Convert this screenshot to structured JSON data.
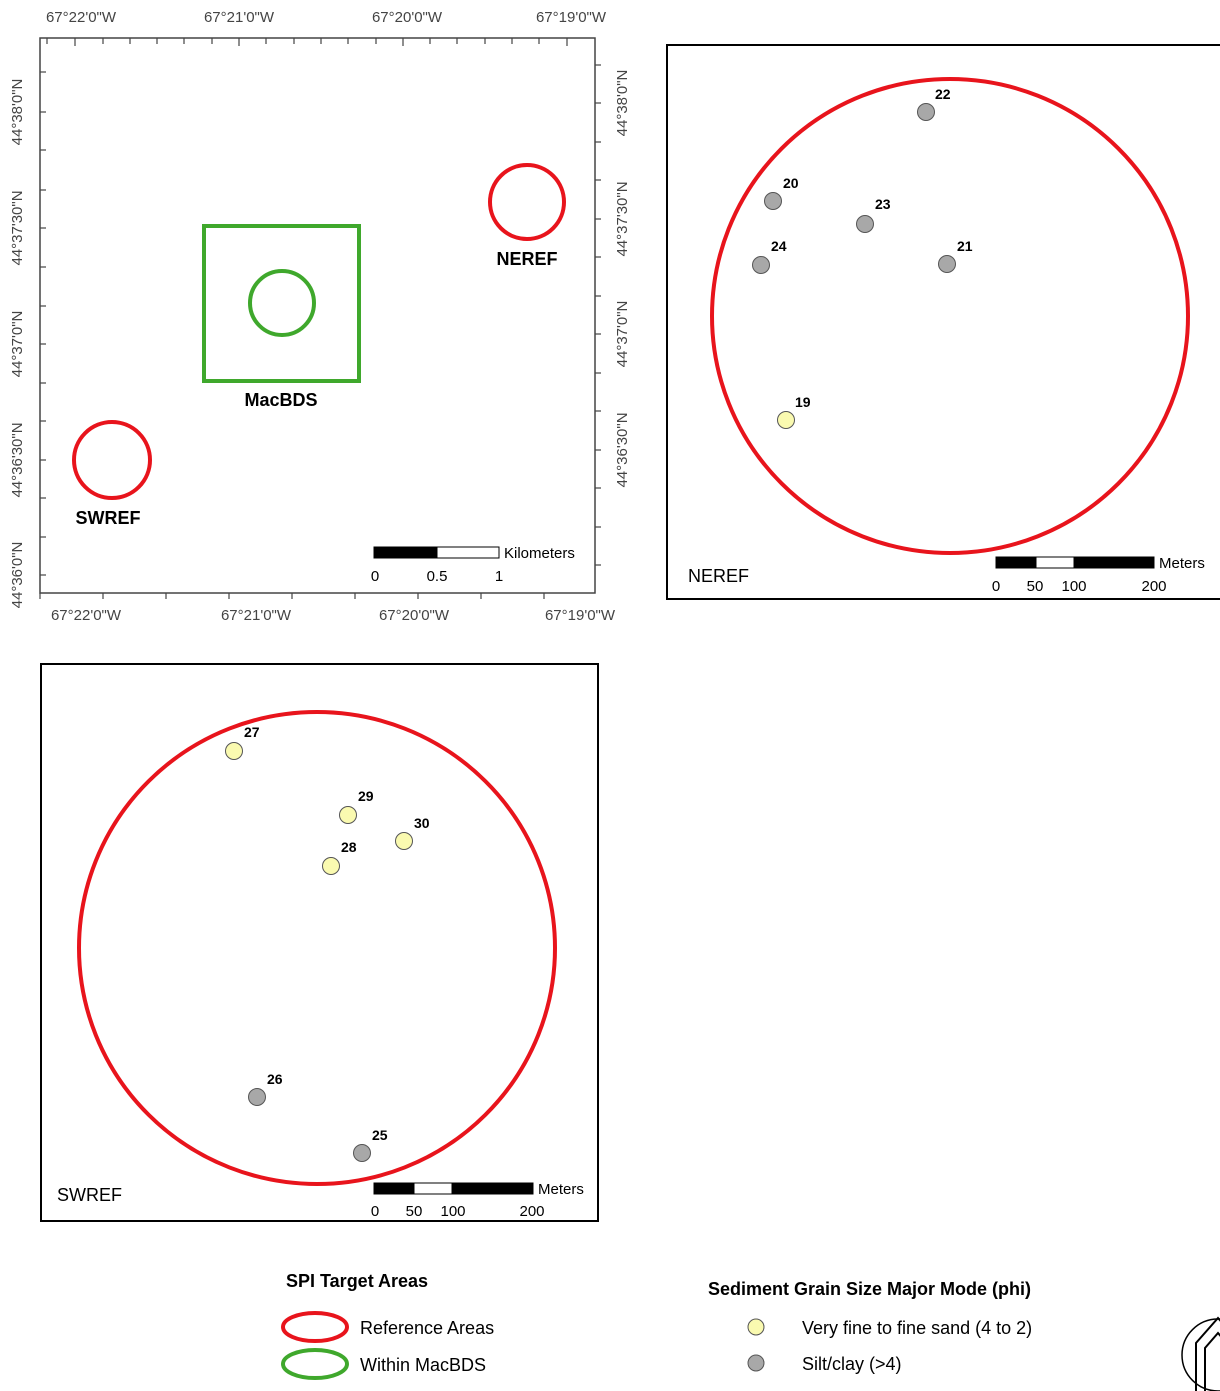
{
  "overview": {
    "top_lon_labels": [
      "67°22'0\"W",
      "67°21'0\"W",
      "67°20'0\"W",
      "67°19'0\"W"
    ],
    "bottom_lon_labels": [
      "67°22'0\"W",
      "67°21'0\"W",
      "67°20'0\"W",
      "67°19'0\"W"
    ],
    "left_lat_labels": [
      "44°38'0\"N",
      "44°37'30\"N",
      "44°37'0\"N",
      "44°36'30\"N",
      "44°36'0\"N"
    ],
    "right_lat_labels": [
      "44°38'0\"N",
      "44°37'30\"N",
      "44°37'0\"N",
      "44°36'30\"N"
    ],
    "areas": {
      "neref": "NEREF",
      "swref": "SWREF",
      "macbds": "MacBDS"
    },
    "scale": {
      "unit": "Kilometers",
      "ticks": [
        "0",
        "0.5",
        "1"
      ]
    }
  },
  "neref_panel": {
    "label": "NEREF",
    "scale": {
      "unit": "Meters",
      "ticks": [
        "0",
        "50",
        "100",
        "200"
      ]
    },
    "stations": [
      {
        "id": "22",
        "class": "silt"
      },
      {
        "id": "20",
        "class": "silt"
      },
      {
        "id": "23",
        "class": "silt"
      },
      {
        "id": "24",
        "class": "silt"
      },
      {
        "id": "21",
        "class": "silt"
      },
      {
        "id": "19",
        "class": "sand"
      }
    ]
  },
  "swref_panel": {
    "label": "SWREF",
    "scale": {
      "unit": "Meters",
      "ticks": [
        "0",
        "50",
        "100",
        "200"
      ]
    },
    "stations": [
      {
        "id": "27",
        "class": "sand"
      },
      {
        "id": "29",
        "class": "sand"
      },
      {
        "id": "30",
        "class": "sand"
      },
      {
        "id": "28",
        "class": "sand"
      },
      {
        "id": "26",
        "class": "silt"
      },
      {
        "id": "25",
        "class": "silt"
      }
    ]
  },
  "legend": {
    "target_title": "SPI Target Areas",
    "reference": "Reference Areas",
    "within": "Within MacBDS",
    "grain_title": "Sediment Grain Size Major Mode (phi)",
    "sand": "Very fine to fine sand (4 to 2)",
    "silt": "Silt/clay (>4)"
  },
  "colors": {
    "reference": "#e8141c",
    "within": "#3fa82c",
    "sand": "#fafab0",
    "silt": "#a8a8a8"
  }
}
